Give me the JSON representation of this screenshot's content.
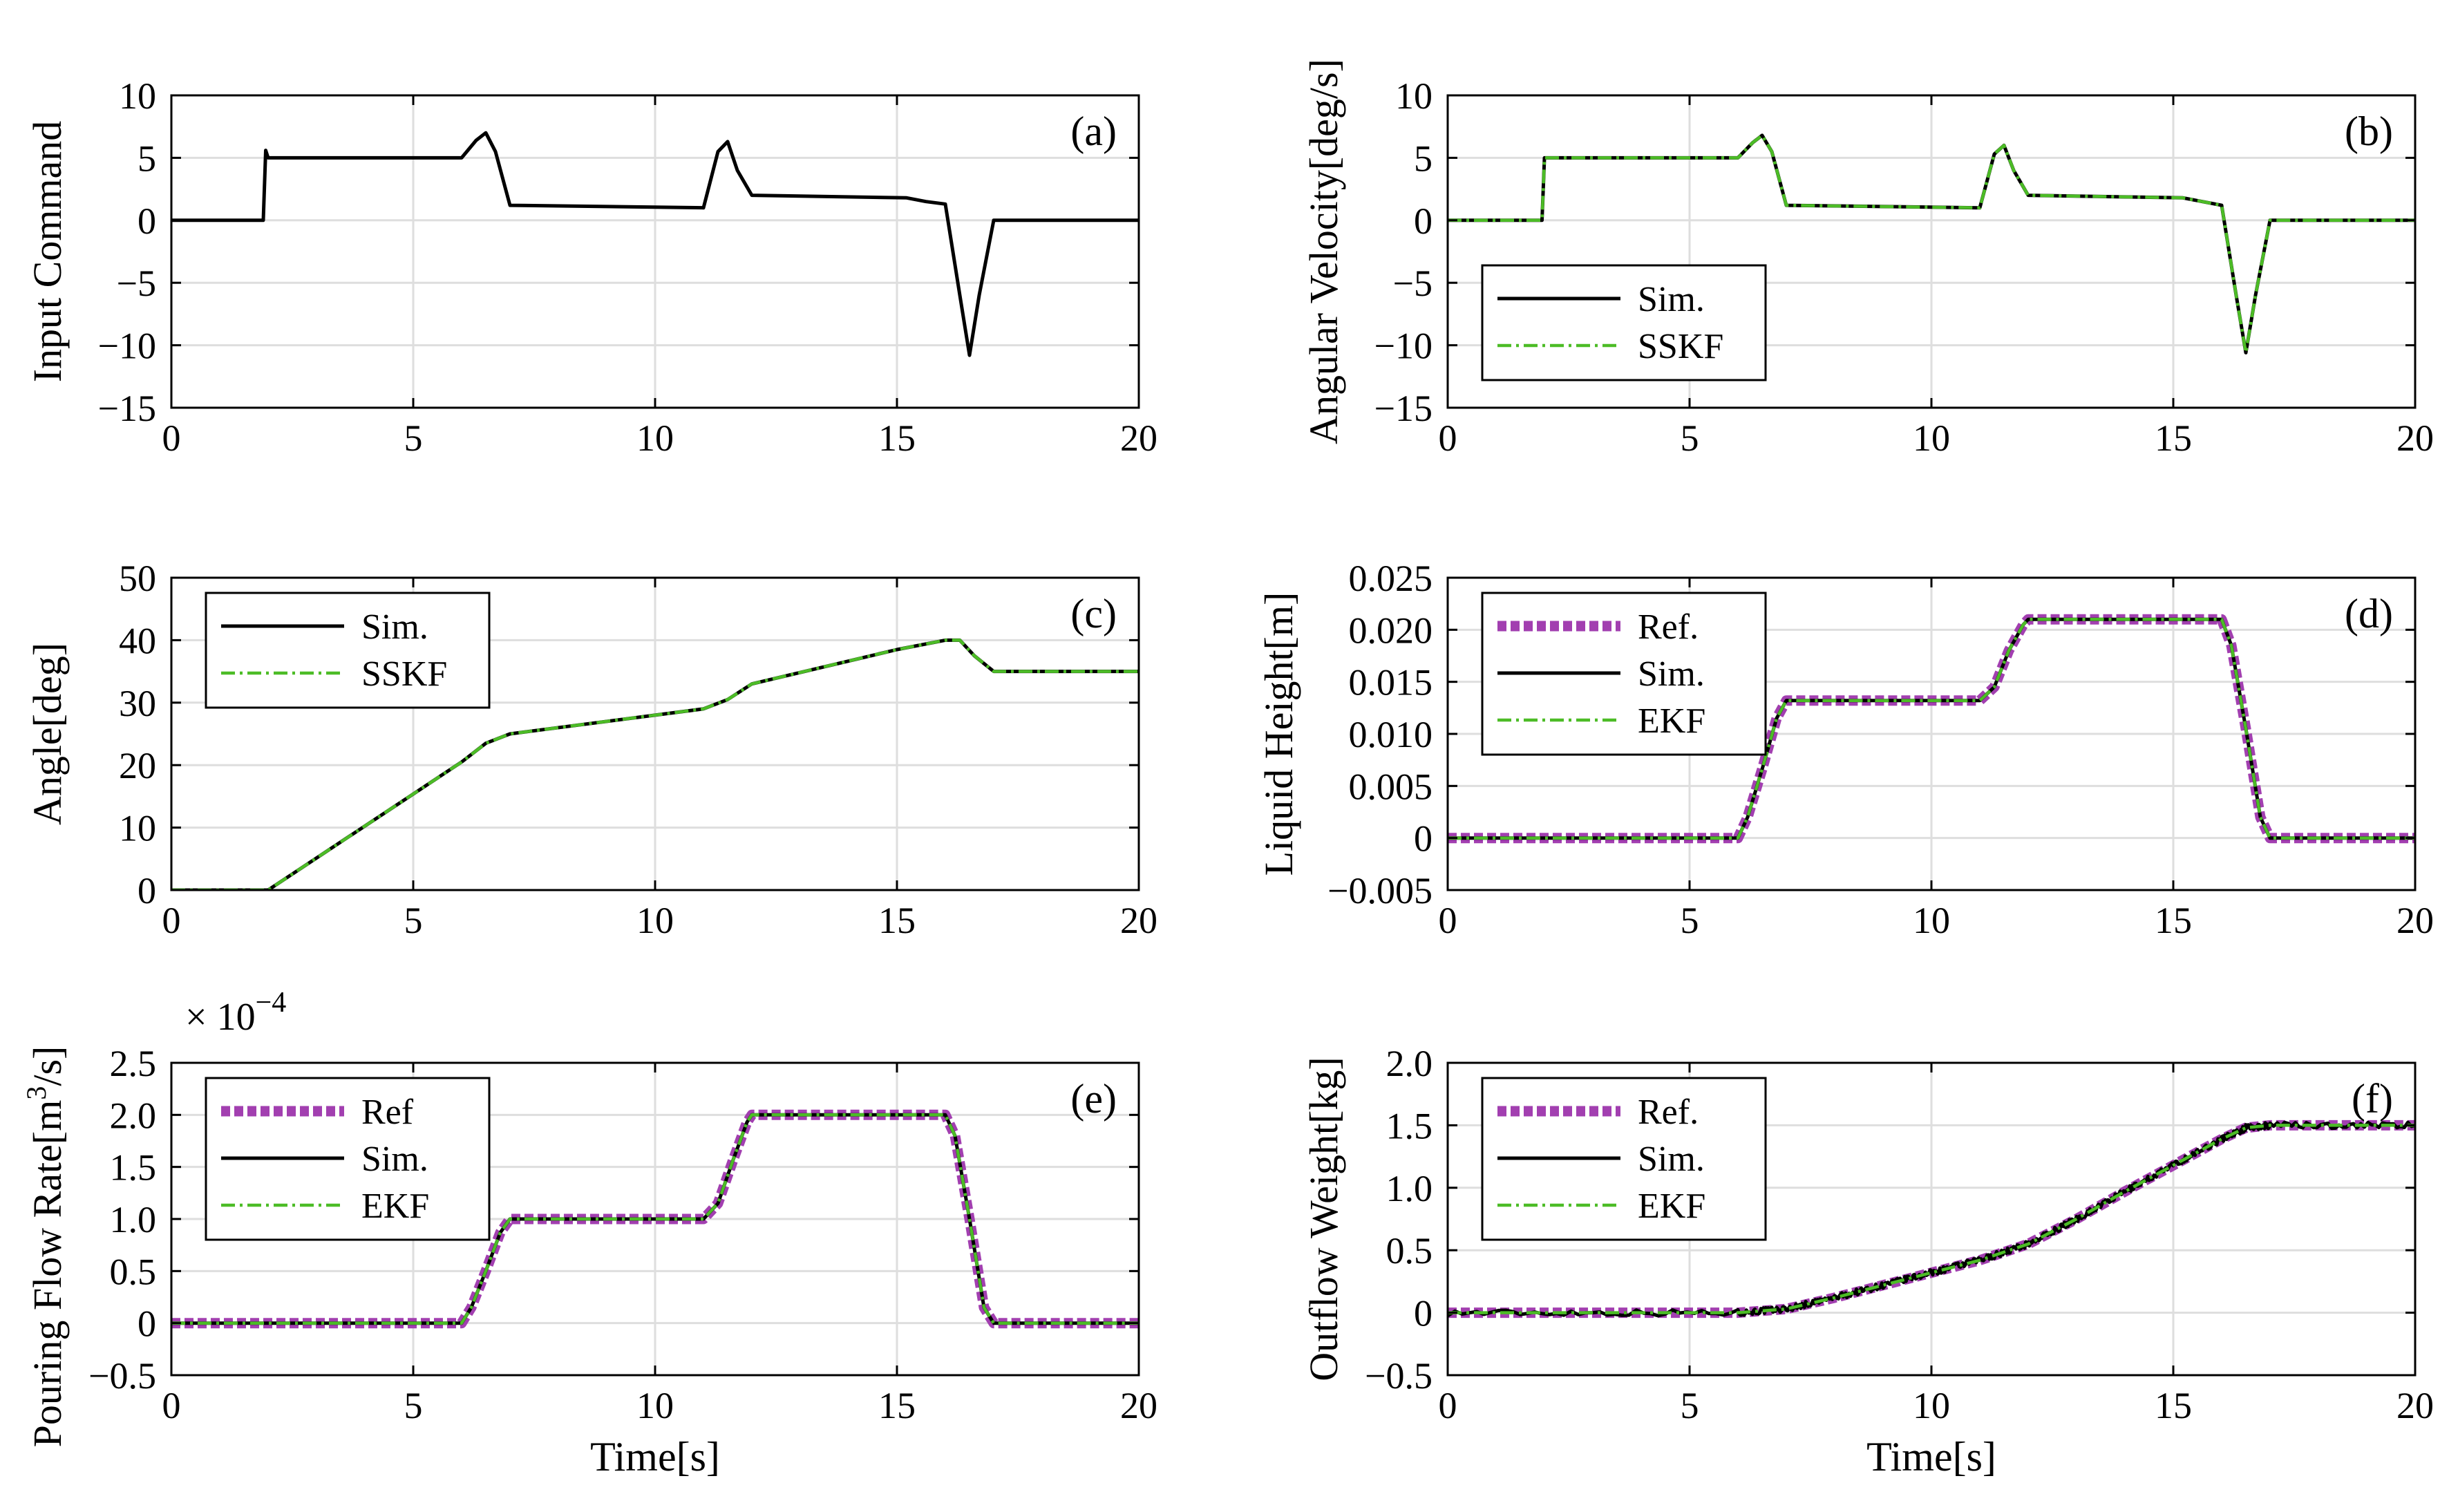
{
  "colors": {
    "sim": "#000000",
    "est": "#4cbc26",
    "ref": "#a23fb0",
    "grid": "#dedede",
    "axis": "#000000"
  },
  "xlabel": "Time[s]",
  "exponent": {
    "prefix": "× 10",
    "power": "−4"
  },
  "chart_data": [
    {
      "id": "a",
      "type": "line",
      "panel_label": "(a)",
      "ylabel": "Input Command",
      "xlim": [
        0,
        20
      ],
      "ylim": [
        -15,
        10
      ],
      "xticks": [
        0,
        5,
        10,
        15,
        20
      ],
      "xtick_labels": [
        "0",
        "5",
        "10",
        "15",
        "20"
      ],
      "yticks": [
        -15,
        -10,
        -5,
        0,
        5,
        10
      ],
      "ytick_labels": [
        "−15",
        "−10",
        "−5",
        "0",
        "5",
        "10"
      ],
      "show_xlabel": false,
      "legend": null,
      "series": [
        {
          "name": "Input",
          "role": "sim",
          "x": [
            0,
            1.9,
            1.95,
            2.0,
            6.0,
            6.3,
            6.5,
            6.7,
            7.0,
            11.0,
            11.3,
            11.5,
            11.7,
            12.0,
            15.2,
            15.6,
            16.0,
            16.3,
            16.5,
            16.7,
            17.0,
            20
          ],
          "y": [
            0,
            0,
            5.6,
            5.0,
            5.0,
            6.4,
            7.0,
            5.5,
            1.2,
            1.0,
            5.5,
            6.3,
            4.0,
            2.0,
            1.8,
            1.5,
            1.3,
            -6.0,
            -10.8,
            -6.0,
            0,
            0
          ]
        }
      ]
    },
    {
      "id": "b",
      "type": "line",
      "panel_label": "(b)",
      "ylabel": "Angular Velocity[deg/s]",
      "xlim": [
        0,
        20
      ],
      "ylim": [
        -15,
        10
      ],
      "xticks": [
        0,
        5,
        10,
        15,
        20
      ],
      "xtick_labels": [
        "0",
        "5",
        "10",
        "15",
        "20"
      ],
      "yticks": [
        -15,
        -10,
        -5,
        0,
        5,
        10
      ],
      "ytick_labels": [
        "−15",
        "−10",
        "−5",
        "0",
        "5",
        "10"
      ],
      "show_xlabel": false,
      "legend": {
        "position": "bottom-left",
        "entries": [
          {
            "label": "Sim.",
            "role": "sim"
          },
          {
            "label": "SSKF",
            "role": "est"
          }
        ]
      },
      "series": [
        {
          "name": "Sim.",
          "role": "sim",
          "x": [
            0,
            1.95,
            2.0,
            6.0,
            6.3,
            6.5,
            6.7,
            7.0,
            11.0,
            11.3,
            11.5,
            11.7,
            12.0,
            15.2,
            15.6,
            16.0,
            16.3,
            16.5,
            16.7,
            17.0,
            20
          ],
          "y": [
            0,
            0,
            5.0,
            5.0,
            6.2,
            6.8,
            5.5,
            1.2,
            1.0,
            5.3,
            6.0,
            4.0,
            2.0,
            1.8,
            1.5,
            1.2,
            -6.0,
            -10.6,
            -6.0,
            0,
            0
          ]
        },
        {
          "name": "SSKF",
          "role": "est",
          "x": [
            0,
            1.95,
            2.0,
            6.0,
            6.3,
            6.5,
            6.7,
            7.0,
            11.0,
            11.3,
            11.5,
            11.7,
            12.0,
            15.2,
            15.6,
            16.0,
            16.3,
            16.5,
            16.7,
            17.0,
            20
          ],
          "y": [
            0,
            0,
            5.0,
            5.0,
            6.2,
            6.8,
            5.5,
            1.2,
            1.0,
            5.3,
            6.0,
            4.0,
            2.0,
            1.8,
            1.5,
            1.2,
            -6.0,
            -10.6,
            -6.0,
            0,
            0
          ]
        }
      ]
    },
    {
      "id": "c",
      "type": "line",
      "panel_label": "(c)",
      "ylabel": "Angle[deg]",
      "xlim": [
        0,
        20
      ],
      "ylim": [
        0,
        50
      ],
      "xticks": [
        0,
        5,
        10,
        15,
        20
      ],
      "xtick_labels": [
        "0",
        "5",
        "10",
        "15",
        "20"
      ],
      "yticks": [
        0,
        10,
        20,
        30,
        40,
        50
      ],
      "ytick_labels": [
        "0",
        "10",
        "20",
        "30",
        "40",
        "50"
      ],
      "show_xlabel": false,
      "legend": {
        "position": "top-left",
        "entries": [
          {
            "label": "Sim.",
            "role": "sim"
          },
          {
            "label": "SSKF",
            "role": "est"
          }
        ]
      },
      "series": [
        {
          "name": "Sim.",
          "role": "sim",
          "x": [
            0,
            2.0,
            6.0,
            6.5,
            7.0,
            11.0,
            11.5,
            12.0,
            15.0,
            16.0,
            16.3,
            16.6,
            17.0,
            20
          ],
          "y": [
            0,
            0,
            20.5,
            23.5,
            25.0,
            29.0,
            30.5,
            33.0,
            38.5,
            40.0,
            40.0,
            37.5,
            35.0,
            35.0
          ]
        },
        {
          "name": "SSKF",
          "role": "est",
          "x": [
            0,
            2.0,
            6.0,
            6.5,
            7.0,
            11.0,
            11.5,
            12.0,
            15.0,
            16.0,
            16.3,
            16.6,
            17.0,
            20
          ],
          "y": [
            0,
            0,
            20.5,
            23.5,
            25.0,
            29.0,
            30.5,
            33.0,
            38.5,
            40.0,
            40.0,
            37.5,
            35.0,
            35.0
          ]
        }
      ]
    },
    {
      "id": "d",
      "type": "line",
      "panel_label": "(d)",
      "ylabel": "Liquid Height[m]",
      "xlim": [
        0,
        20
      ],
      "ylim": [
        -0.005,
        0.025
      ],
      "xticks": [
        0,
        5,
        10,
        15,
        20
      ],
      "xtick_labels": [
        "0",
        "5",
        "10",
        "15",
        "20"
      ],
      "yticks": [
        -0.005,
        0,
        0.005,
        0.01,
        0.015,
        0.02,
        0.025
      ],
      "ytick_labels": [
        "−0.005",
        "0",
        "0.005",
        "0.010",
        "0.015",
        "0.020",
        "0.025"
      ],
      "show_xlabel": false,
      "legend": {
        "position": "top-left",
        "entries": [
          {
            "label": "Ref.",
            "role": "ref"
          },
          {
            "label": "Sim.",
            "role": "sim"
          },
          {
            "label": "EKF",
            "role": "est"
          }
        ]
      },
      "series": [
        {
          "name": "Ref.",
          "role": "ref",
          "x": [
            0,
            6.0,
            6.2,
            6.5,
            6.8,
            7.0,
            11.0,
            11.3,
            11.6,
            11.9,
            12.0,
            16.0,
            16.2,
            16.5,
            16.8,
            17.0,
            20
          ],
          "y": [
            0,
            0,
            0.002,
            0.0066,
            0.0115,
            0.0132,
            0.0132,
            0.0145,
            0.018,
            0.0205,
            0.021,
            0.021,
            0.0185,
            0.0105,
            0.002,
            0,
            0
          ]
        },
        {
          "name": "Sim.",
          "role": "sim",
          "x": [
            0,
            6.0,
            6.2,
            6.5,
            6.8,
            7.0,
            11.0,
            11.3,
            11.6,
            11.9,
            12.0,
            16.0,
            16.2,
            16.5,
            16.8,
            17.0,
            20
          ],
          "y": [
            0,
            0,
            0.002,
            0.0066,
            0.0115,
            0.0132,
            0.0132,
            0.0145,
            0.018,
            0.0205,
            0.021,
            0.021,
            0.0185,
            0.0105,
            0.002,
            0,
            0
          ]
        },
        {
          "name": "EKF",
          "role": "est",
          "x": [
            0,
            6.0,
            6.2,
            6.5,
            6.8,
            7.0,
            11.0,
            11.3,
            11.6,
            11.9,
            12.0,
            16.0,
            16.2,
            16.5,
            16.8,
            17.0,
            20
          ],
          "y": [
            0,
            0,
            0.002,
            0.0066,
            0.0115,
            0.0132,
            0.0132,
            0.0145,
            0.018,
            0.0205,
            0.021,
            0.021,
            0.0185,
            0.0105,
            0.002,
            0,
            0
          ]
        }
      ]
    },
    {
      "id": "e",
      "type": "line",
      "panel_label": "(e)",
      "ylabel_main": "Pouring Flow Rate[m",
      "ylabel_sup": "3",
      "ylabel_tail": "/s]",
      "show_exponent": true,
      "xlim": [
        0,
        20
      ],
      "ylim": [
        -0.5,
        2.5
      ],
      "xticks": [
        0,
        5,
        10,
        15,
        20
      ],
      "xtick_labels": [
        "0",
        "5",
        "10",
        "15",
        "20"
      ],
      "yticks": [
        -0.5,
        0,
        0.5,
        1.0,
        1.5,
        2.0,
        2.5
      ],
      "ytick_labels": [
        "−0.5",
        "0",
        "0.5",
        "1.0",
        "1.5",
        "2.0",
        "2.5"
      ],
      "show_xlabel": true,
      "legend": {
        "position": "top-left",
        "entries": [
          {
            "label": "Ref",
            "role": "ref"
          },
          {
            "label": "Sim.",
            "role": "sim"
          },
          {
            "label": "EKF",
            "role": "est"
          }
        ]
      },
      "series": [
        {
          "name": "Ref",
          "role": "ref",
          "x": [
            0,
            6.0,
            6.2,
            6.5,
            6.8,
            7.0,
            11.0,
            11.3,
            11.6,
            11.9,
            12.0,
            16.0,
            16.2,
            16.5,
            16.8,
            17.0,
            20
          ],
          "y": [
            0,
            0,
            0.15,
            0.5,
            0.87,
            1.0,
            1.0,
            1.15,
            1.55,
            1.93,
            2.0,
            2.0,
            1.8,
            1.0,
            0.15,
            0,
            0
          ]
        },
        {
          "name": "Sim.",
          "role": "sim",
          "x": [
            0,
            6.0,
            6.2,
            6.5,
            6.8,
            7.0,
            11.0,
            11.3,
            11.6,
            11.9,
            12.0,
            16.0,
            16.2,
            16.5,
            16.8,
            17.0,
            20
          ],
          "y": [
            0,
            0,
            0.15,
            0.5,
            0.87,
            1.0,
            1.0,
            1.15,
            1.55,
            1.93,
            2.0,
            2.0,
            1.8,
            1.0,
            0.15,
            0,
            0
          ]
        },
        {
          "name": "EKF",
          "role": "est",
          "x": [
            0,
            6.0,
            6.2,
            6.5,
            6.8,
            7.0,
            11.0,
            11.3,
            11.6,
            11.9,
            12.0,
            16.0,
            16.2,
            16.5,
            16.8,
            17.0,
            20
          ],
          "y": [
            0,
            0,
            0.15,
            0.5,
            0.87,
            1.0,
            1.0,
            1.15,
            1.55,
            1.93,
            2.0,
            2.0,
            1.8,
            1.0,
            0.15,
            0,
            0
          ]
        }
      ]
    },
    {
      "id": "f",
      "type": "line",
      "panel_label": "(f)",
      "ylabel": "Outflow Weight[kg]",
      "xlim": [
        0,
        20
      ],
      "ylim": [
        -0.5,
        2.0
      ],
      "xticks": [
        0,
        5,
        10,
        15,
        20
      ],
      "xtick_labels": [
        "0",
        "5",
        "10",
        "15",
        "20"
      ],
      "yticks": [
        -0.5,
        0,
        0.5,
        1.0,
        1.5,
        2.0
      ],
      "ytick_labels": [
        "−0.5",
        "0",
        "0.5",
        "1.0",
        "1.5",
        "2.0"
      ],
      "show_xlabel": true,
      "legend": {
        "position": "top-left",
        "entries": [
          {
            "label": "Ref.",
            "role": "ref"
          },
          {
            "label": "Sim.",
            "role": "sim"
          },
          {
            "label": "EKF",
            "role": "est"
          }
        ]
      },
      "series": [
        {
          "name": "Ref.",
          "role": "ref",
          "x": [
            0,
            6.0,
            7.0,
            8.0,
            9.0,
            10.0,
            11.0,
            12.0,
            13.0,
            14.0,
            15.0,
            16.0,
            16.5,
            17.0,
            20
          ],
          "y": [
            0,
            0,
            0.03,
            0.12,
            0.22,
            0.32,
            0.42,
            0.55,
            0.75,
            0.97,
            1.18,
            1.39,
            1.48,
            1.5,
            1.5
          ]
        },
        {
          "name": "Sim.",
          "role": "sim",
          "noisy": true,
          "x": [
            0,
            6.0,
            7.0,
            8.0,
            9.0,
            10.0,
            11.0,
            12.0,
            13.0,
            14.0,
            15.0,
            16.0,
            16.5,
            17.0,
            20
          ],
          "y": [
            0,
            0,
            0.03,
            0.12,
            0.22,
            0.32,
            0.42,
            0.55,
            0.75,
            0.97,
            1.18,
            1.39,
            1.48,
            1.5,
            1.5
          ]
        },
        {
          "name": "EKF",
          "role": "est",
          "x": [
            0,
            6.0,
            7.0,
            8.0,
            9.0,
            10.0,
            11.0,
            12.0,
            13.0,
            14.0,
            15.0,
            16.0,
            16.5,
            17.0,
            20
          ],
          "y": [
            0,
            0,
            0.03,
            0.12,
            0.22,
            0.32,
            0.42,
            0.55,
            0.75,
            0.97,
            1.18,
            1.39,
            1.48,
            1.5,
            1.5
          ]
        }
      ]
    }
  ]
}
